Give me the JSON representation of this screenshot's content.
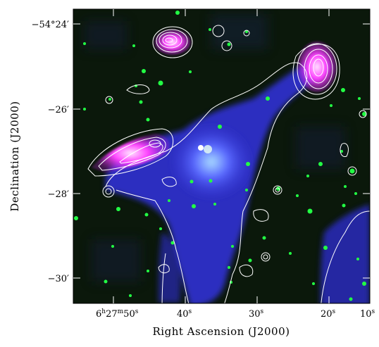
{
  "figure": {
    "xlabel": "Right Ascension (J2000)",
    "ylabel": "Declination (J2000)",
    "x_ticks": [
      {
        "h": "6",
        "m": "27",
        "s": "50",
        "label_s": "s",
        "value": 50
      },
      {
        "s": "40",
        "label_s": "s",
        "value": 40
      },
      {
        "s": "30",
        "label_s": "s",
        "value": 30
      },
      {
        "s": "20",
        "label_s": "s",
        "value": 20
      },
      {
        "s": "10",
        "label_s": "s",
        "value": 10
      }
    ],
    "y_ticks": [
      {
        "text": "−54°24′",
        "value": -54.4
      },
      {
        "text": "−26′",
        "value": -26
      },
      {
        "text": "−28′",
        "value": -28
      },
      {
        "text": "−30′",
        "value": -30
      }
    ],
    "colors": {
      "background": "#0a1a0a",
      "diffuse": "#3a3aff",
      "lobes": "#ff33ff",
      "stars": "#22ff44",
      "contours": "#ffffff"
    }
  }
}
